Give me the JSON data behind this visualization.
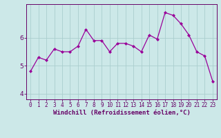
{
  "x": [
    0,
    1,
    2,
    3,
    4,
    5,
    6,
    7,
    8,
    9,
    10,
    11,
    12,
    13,
    14,
    15,
    16,
    17,
    18,
    19,
    20,
    21,
    22,
    23
  ],
  "y": [
    4.8,
    5.3,
    5.2,
    5.6,
    5.5,
    5.5,
    5.7,
    6.3,
    5.9,
    5.9,
    5.5,
    5.8,
    5.8,
    5.7,
    5.5,
    6.1,
    5.95,
    6.9,
    6.8,
    6.5,
    6.1,
    5.5,
    5.35,
    4.45
  ],
  "line_color": "#990099",
  "marker": "D",
  "marker_size": 2.0,
  "bg_color": "#cce8e8",
  "grid_color": "#aacece",
  "xlabel": "Windchill (Refroidissement éolien,°C)",
  "xlabel_color": "#660066",
  "tick_color": "#660066",
  "axis_color": "#660066",
  "ylim": [
    3.8,
    7.2
  ],
  "yticks": [
    4,
    5,
    6
  ],
  "xlim": [
    -0.5,
    23.5
  ],
  "xticks": [
    0,
    1,
    2,
    3,
    4,
    5,
    6,
    7,
    8,
    9,
    10,
    11,
    12,
    13,
    14,
    15,
    16,
    17,
    18,
    19,
    20,
    21,
    22,
    23
  ],
  "xtick_labels": [
    "0",
    "1",
    "2",
    "3",
    "4",
    "5",
    "6",
    "7",
    "8",
    "9",
    "10",
    "11",
    "12",
    "13",
    "14",
    "15",
    "16",
    "17",
    "18",
    "19",
    "20",
    "21",
    "22",
    "23"
  ],
  "ylabel_fontsize": 6.5,
  "xlabel_fontsize": 6.5,
  "xtick_fontsize": 5.5,
  "ytick_fontsize": 6.5
}
